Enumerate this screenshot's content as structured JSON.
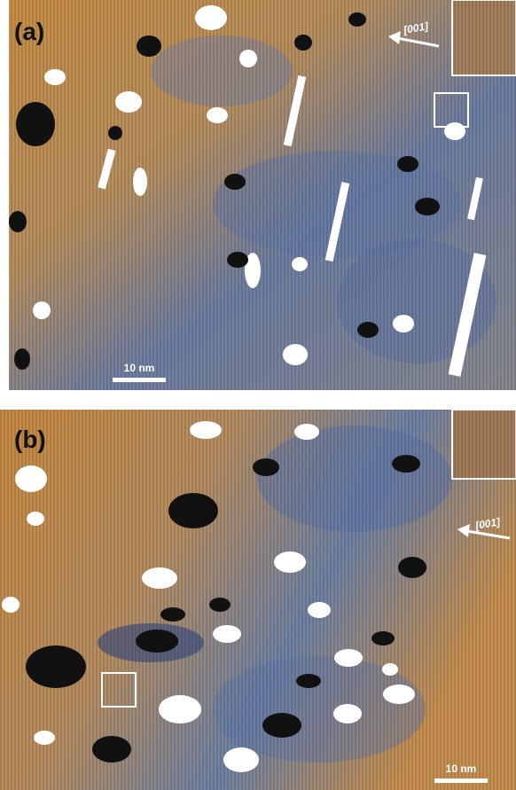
{
  "panels": [
    {
      "label": "(a)",
      "direction": "[001]",
      "scale_bar": "10 nm"
    },
    {
      "label": "(b)",
      "direction": "[001]",
      "scale_bar": "10 nm"
    }
  ]
}
